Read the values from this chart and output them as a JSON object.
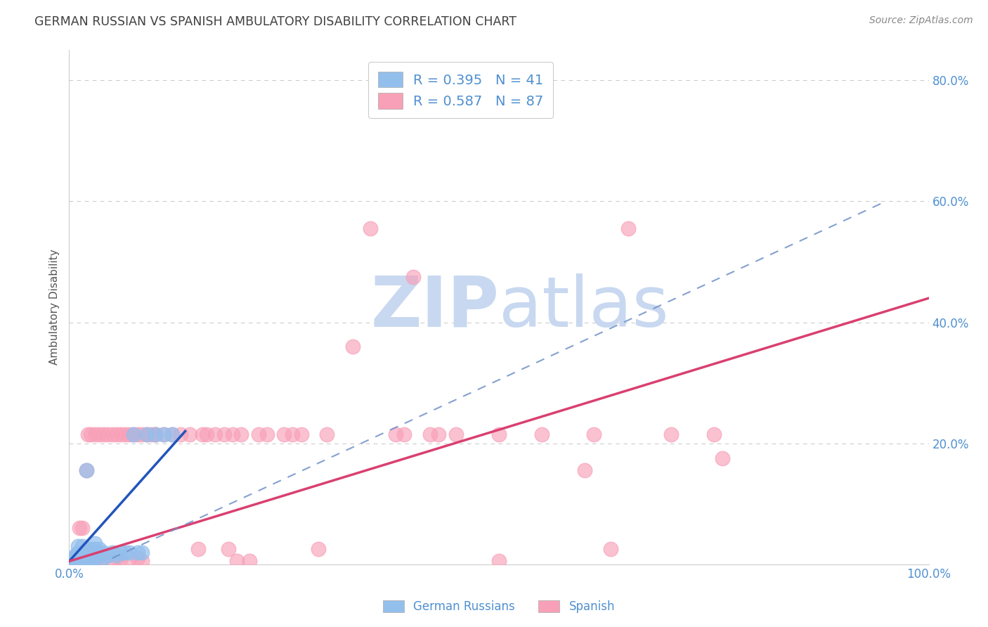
{
  "title": "GERMAN RUSSIAN VS SPANISH AMBULATORY DISABILITY CORRELATION CHART",
  "source": "Source: ZipAtlas.com",
  "ylabel": "Ambulatory Disability",
  "xlim": [
    0.0,
    1.0
  ],
  "ylim": [
    0.0,
    0.85
  ],
  "y_ticks": [
    0.0,
    0.2,
    0.4,
    0.6,
    0.8
  ],
  "y_tick_labels_right": [
    "",
    "20.0%",
    "40.0%",
    "60.0%",
    "80.0%"
  ],
  "german_russian_R": 0.395,
  "german_russian_N": 41,
  "spanish_R": 0.587,
  "spanish_N": 87,
  "german_russian_color": "#93BFED",
  "german_russian_line_color": "#2255BB",
  "spanish_color": "#F8A0B8",
  "spanish_line_color": "#D94070",
  "dash_line_color": "#7090C8",
  "grid_color": "#CCCCCC",
  "watermark_color": "#C8D8F0",
  "title_color": "#404040",
  "tick_color": "#5090D0",
  "german_russian_points": [
    [
      0.005,
      0.005
    ],
    [
      0.005,
      0.01
    ],
    [
      0.007,
      0.015
    ],
    [
      0.008,
      0.005
    ],
    [
      0.01,
      0.005
    ],
    [
      0.01,
      0.01
    ],
    [
      0.01,
      0.02
    ],
    [
      0.01,
      0.03
    ],
    [
      0.015,
      0.005
    ],
    [
      0.015,
      0.01
    ],
    [
      0.015,
      0.02
    ],
    [
      0.015,
      0.03
    ],
    [
      0.02,
      0.005
    ],
    [
      0.02,
      0.01
    ],
    [
      0.02,
      0.015
    ],
    [
      0.02,
      0.025
    ],
    [
      0.02,
      0.155
    ],
    [
      0.025,
      0.005
    ],
    [
      0.025,
      0.015
    ],
    [
      0.025,
      0.025
    ],
    [
      0.03,
      0.01
    ],
    [
      0.03,
      0.015
    ],
    [
      0.03,
      0.025
    ],
    [
      0.03,
      0.035
    ],
    [
      0.035,
      0.015
    ],
    [
      0.035,
      0.025
    ],
    [
      0.04,
      0.01
    ],
    [
      0.04,
      0.02
    ],
    [
      0.045,
      0.015
    ],
    [
      0.05,
      0.02
    ],
    [
      0.055,
      0.015
    ],
    [
      0.06,
      0.02
    ],
    [
      0.065,
      0.02
    ],
    [
      0.07,
      0.02
    ],
    [
      0.075,
      0.215
    ],
    [
      0.08,
      0.02
    ],
    [
      0.085,
      0.02
    ],
    [
      0.09,
      0.215
    ],
    [
      0.1,
      0.215
    ],
    [
      0.11,
      0.215
    ],
    [
      0.12,
      0.215
    ]
  ],
  "spanish_points": [
    [
      0.005,
      0.005
    ],
    [
      0.005,
      0.01
    ],
    [
      0.007,
      0.005
    ],
    [
      0.01,
      0.005
    ],
    [
      0.01,
      0.01
    ],
    [
      0.01,
      0.015
    ],
    [
      0.012,
      0.005
    ],
    [
      0.012,
      0.015
    ],
    [
      0.012,
      0.06
    ],
    [
      0.015,
      0.005
    ],
    [
      0.015,
      0.01
    ],
    [
      0.015,
      0.02
    ],
    [
      0.015,
      0.06
    ],
    [
      0.02,
      0.005
    ],
    [
      0.02,
      0.01
    ],
    [
      0.02,
      0.02
    ],
    [
      0.02,
      0.155
    ],
    [
      0.022,
      0.215
    ],
    [
      0.025,
      0.01
    ],
    [
      0.025,
      0.02
    ],
    [
      0.025,
      0.215
    ],
    [
      0.03,
      0.005
    ],
    [
      0.03,
      0.015
    ],
    [
      0.03,
      0.215
    ],
    [
      0.035,
      0.01
    ],
    [
      0.035,
      0.02
    ],
    [
      0.035,
      0.215
    ],
    [
      0.04,
      0.215
    ],
    [
      0.04,
      0.01
    ],
    [
      0.045,
      0.215
    ],
    [
      0.05,
      0.215
    ],
    [
      0.05,
      0.005
    ],
    [
      0.055,
      0.01
    ],
    [
      0.055,
      0.215
    ],
    [
      0.06,
      0.215
    ],
    [
      0.06,
      0.01
    ],
    [
      0.065,
      0.215
    ],
    [
      0.07,
      0.215
    ],
    [
      0.07,
      0.01
    ],
    [
      0.075,
      0.215
    ],
    [
      0.08,
      0.215
    ],
    [
      0.08,
      0.01
    ],
    [
      0.085,
      0.215
    ],
    [
      0.085,
      0.005
    ],
    [
      0.09,
      0.215
    ],
    [
      0.095,
      0.215
    ],
    [
      0.1,
      0.215
    ],
    [
      0.1,
      0.215
    ],
    [
      0.11,
      0.215
    ],
    [
      0.12,
      0.215
    ],
    [
      0.13,
      0.215
    ],
    [
      0.14,
      0.215
    ],
    [
      0.15,
      0.025
    ],
    [
      0.155,
      0.215
    ],
    [
      0.16,
      0.215
    ],
    [
      0.17,
      0.215
    ],
    [
      0.18,
      0.215
    ],
    [
      0.185,
      0.025
    ],
    [
      0.19,
      0.215
    ],
    [
      0.195,
      0.005
    ],
    [
      0.2,
      0.215
    ],
    [
      0.21,
      0.005
    ],
    [
      0.22,
      0.215
    ],
    [
      0.23,
      0.215
    ],
    [
      0.25,
      0.215
    ],
    [
      0.26,
      0.215
    ],
    [
      0.27,
      0.215
    ],
    [
      0.29,
      0.025
    ],
    [
      0.3,
      0.215
    ],
    [
      0.33,
      0.36
    ],
    [
      0.35,
      0.555
    ],
    [
      0.38,
      0.215
    ],
    [
      0.39,
      0.215
    ],
    [
      0.4,
      0.475
    ],
    [
      0.42,
      0.215
    ],
    [
      0.43,
      0.215
    ],
    [
      0.45,
      0.215
    ],
    [
      0.5,
      0.215
    ],
    [
      0.5,
      0.005
    ],
    [
      0.55,
      0.215
    ],
    [
      0.6,
      0.155
    ],
    [
      0.61,
      0.215
    ],
    [
      0.63,
      0.025
    ],
    [
      0.65,
      0.555
    ],
    [
      0.7,
      0.215
    ],
    [
      0.75,
      0.215
    ],
    [
      0.76,
      0.175
    ]
  ],
  "gr_line": {
    "x0": 0.0,
    "x1": 0.135,
    "y0": 0.005,
    "y1": 0.22
  },
  "sp_line": {
    "x0": 0.0,
    "x1": 1.0,
    "y0": 0.005,
    "y1": 0.44
  },
  "dash_line": {
    "x0": 0.05,
    "x1": 0.95,
    "y0": 0.01,
    "y1": 0.6
  }
}
